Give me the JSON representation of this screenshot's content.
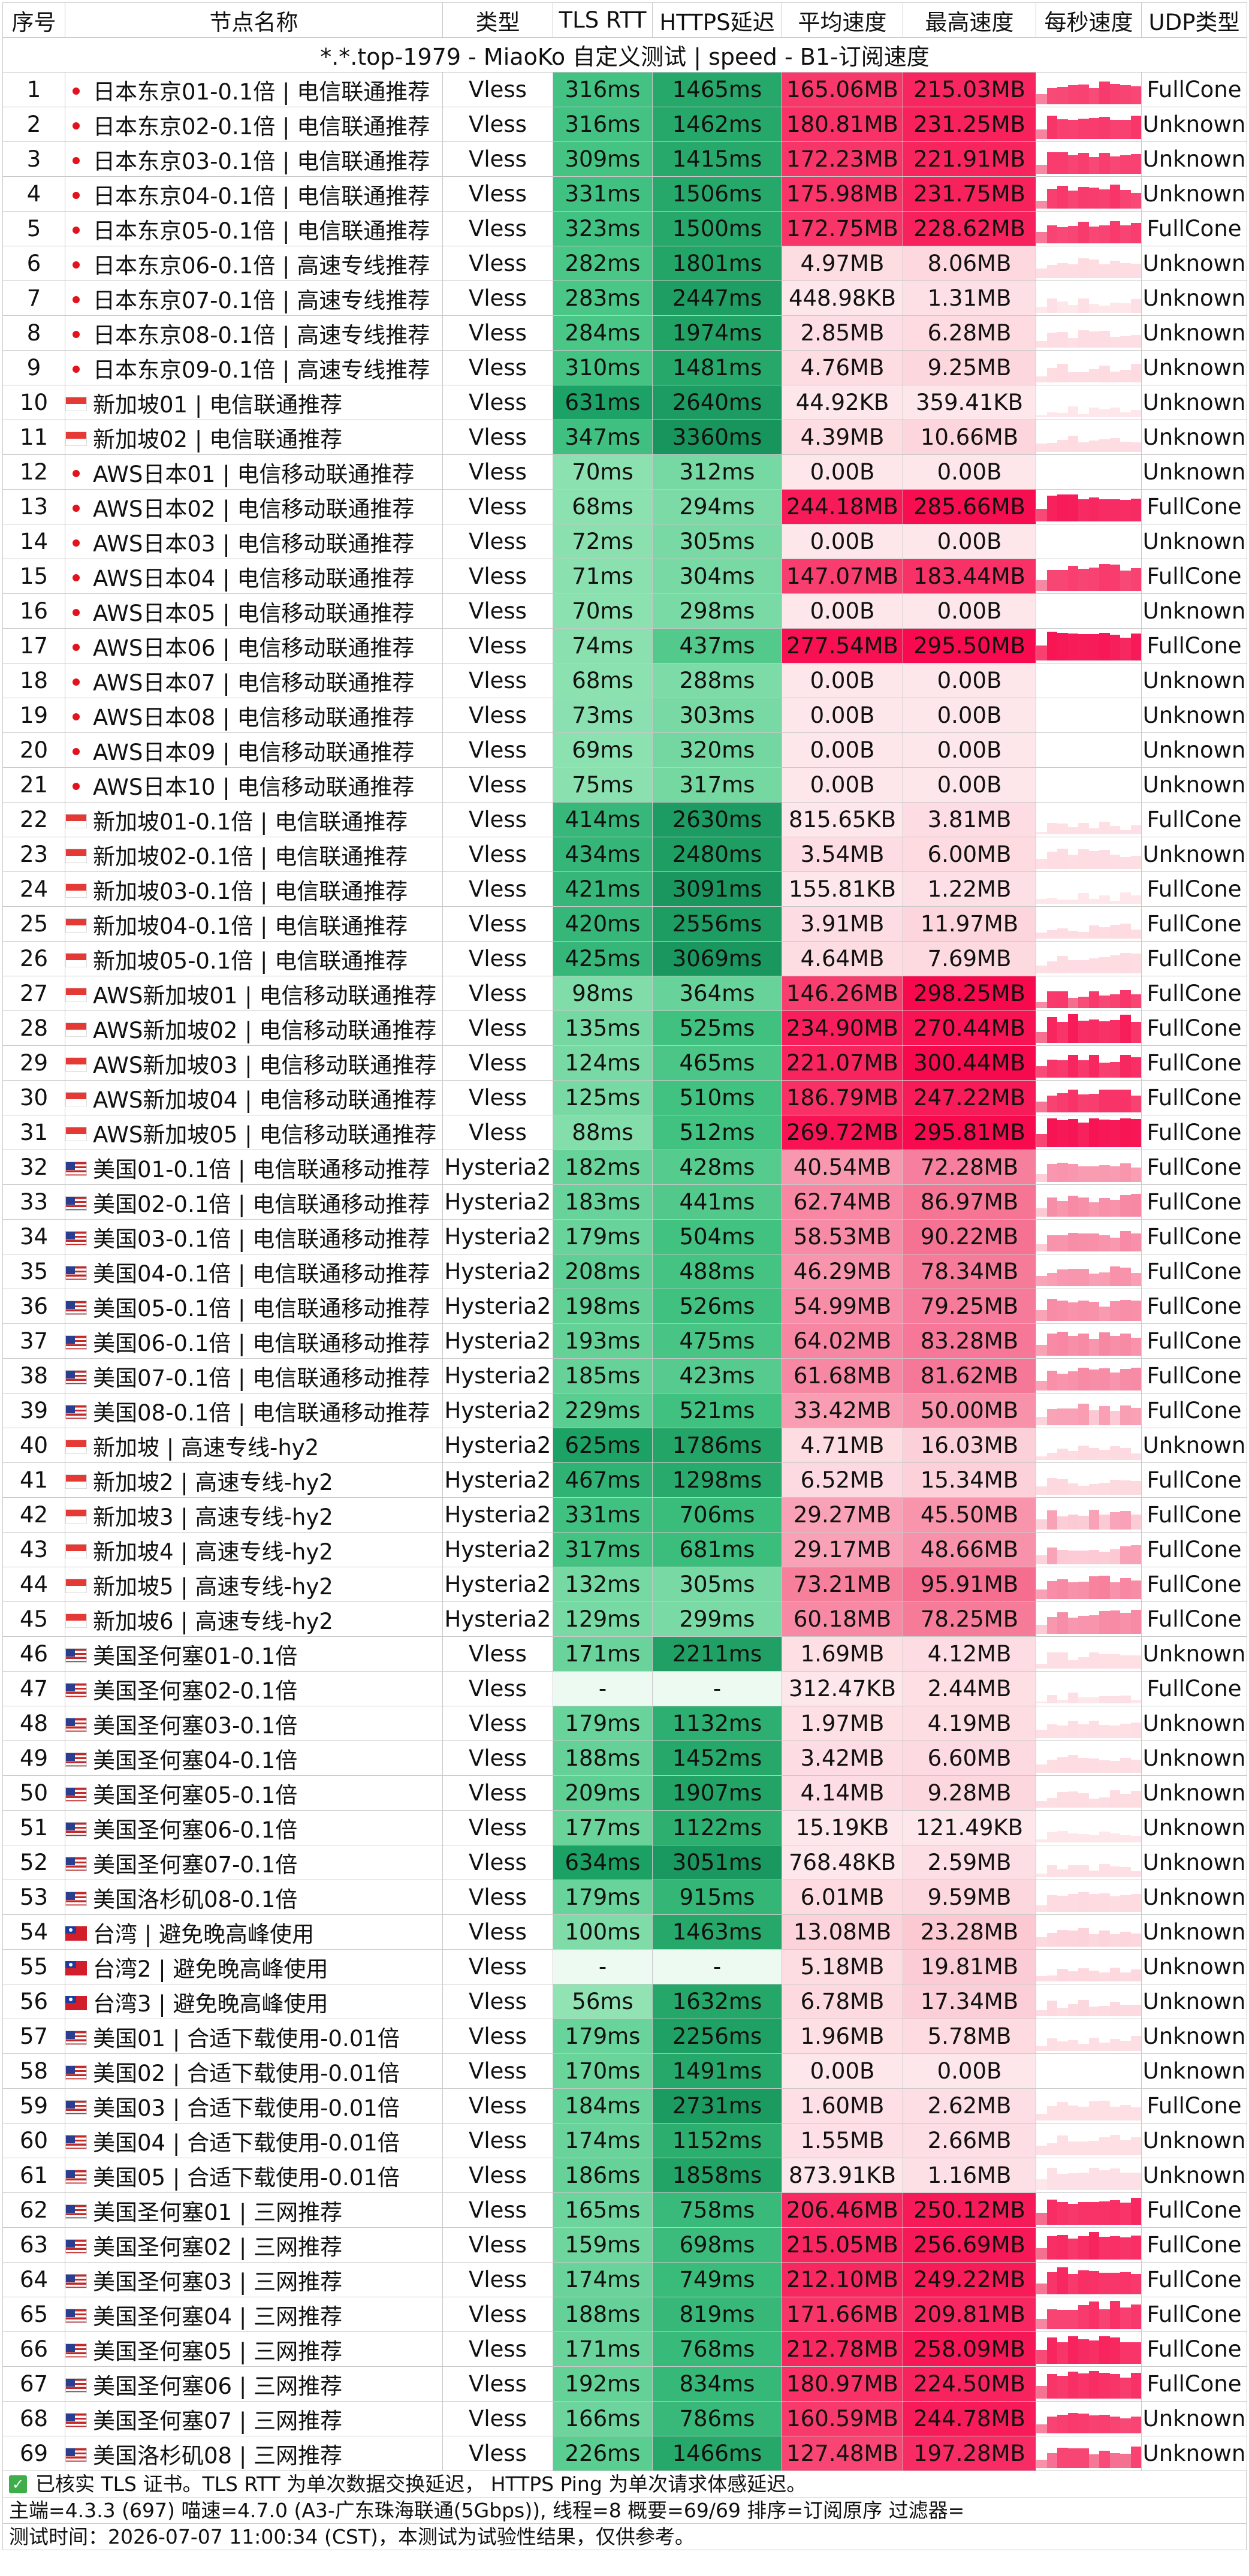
{
  "title": "*.*.top-1979 - MiaoKo 自定义测试 | speed - B1-订阅速度",
  "columns": [
    "序号",
    "节点名称",
    "类型",
    "TLS RTT",
    "HTTPS延迟",
    "平均速度",
    "最高速度",
    "每秒速度",
    "UDP类型"
  ],
  "icons": {
    "jp": "japan-flag-icon",
    "sg": "singapore-flag-icon",
    "us": "usa-flag-icon",
    "tw": "taiwan-flag-icon",
    "check": "check-icon"
  },
  "rows": [
    {
      "idx": "1",
      "flag": "jp",
      "name": "日本东京01-0.1倍 | 电信联通推荐",
      "type": "Vless",
      "tls": "316ms",
      "https": "1465ms",
      "avg": "165.06MB",
      "max": "215.03MB",
      "udp": "FullCone"
    },
    {
      "idx": "2",
      "flag": "jp",
      "name": "日本东京02-0.1倍 | 电信联通推荐",
      "type": "Vless",
      "tls": "316ms",
      "https": "1462ms",
      "avg": "180.81MB",
      "max": "231.25MB",
      "udp": "Unknown"
    },
    {
      "idx": "3",
      "flag": "jp",
      "name": "日本东京03-0.1倍 | 电信联通推荐",
      "type": "Vless",
      "tls": "309ms",
      "https": "1415ms",
      "avg": "172.23MB",
      "max": "221.91MB",
      "udp": "Unknown"
    },
    {
      "idx": "4",
      "flag": "jp",
      "name": "日本东京04-0.1倍 | 电信联通推荐",
      "type": "Vless",
      "tls": "331ms",
      "https": "1506ms",
      "avg": "175.98MB",
      "max": "231.75MB",
      "udp": "Unknown"
    },
    {
      "idx": "5",
      "flag": "jp",
      "name": "日本东京05-0.1倍 | 电信联通推荐",
      "type": "Vless",
      "tls": "323ms",
      "https": "1500ms",
      "avg": "172.75MB",
      "max": "228.62MB",
      "udp": "FullCone"
    },
    {
      "idx": "6",
      "flag": "jp",
      "name": "日本东京06-0.1倍 | 高速专线推荐",
      "type": "Vless",
      "tls": "282ms",
      "https": "1801ms",
      "avg": "4.97MB",
      "max": "8.06MB",
      "udp": "Unknown"
    },
    {
      "idx": "7",
      "flag": "jp",
      "name": "日本东京07-0.1倍 | 高速专线推荐",
      "type": "Vless",
      "tls": "283ms",
      "https": "2447ms",
      "avg": "448.98KB",
      "max": "1.31MB",
      "udp": "Unknown"
    },
    {
      "idx": "8",
      "flag": "jp",
      "name": "日本东京08-0.1倍 | 高速专线推荐",
      "type": "Vless",
      "tls": "284ms",
      "https": "1974ms",
      "avg": "2.85MB",
      "max": "6.28MB",
      "udp": "Unknown"
    },
    {
      "idx": "9",
      "flag": "jp",
      "name": "日本东京09-0.1倍 | 高速专线推荐",
      "type": "Vless",
      "tls": "310ms",
      "https": "1481ms",
      "avg": "4.76MB",
      "max": "9.25MB",
      "udp": "Unknown"
    },
    {
      "idx": "10",
      "flag": "sg",
      "name": "新加坡01 | 电信联通推荐",
      "type": "Vless",
      "tls": "631ms",
      "https": "2640ms",
      "avg": "44.92KB",
      "max": "359.41KB",
      "udp": "Unknown"
    },
    {
      "idx": "11",
      "flag": "sg",
      "name": "新加坡02 | 电信联通推荐",
      "type": "Vless",
      "tls": "347ms",
      "https": "3360ms",
      "avg": "4.39MB",
      "max": "10.66MB",
      "udp": "Unknown"
    },
    {
      "idx": "12",
      "flag": "jp",
      "name": "AWS日本01 | 电信移动联通推荐",
      "type": "Vless",
      "tls": "70ms",
      "https": "312ms",
      "avg": "0.00B",
      "max": "0.00B",
      "udp": "Unknown"
    },
    {
      "idx": "13",
      "flag": "jp",
      "name": "AWS日本02 | 电信移动联通推荐",
      "type": "Vless",
      "tls": "68ms",
      "https": "294ms",
      "avg": "244.18MB",
      "max": "285.66MB",
      "udp": "FullCone"
    },
    {
      "idx": "14",
      "flag": "jp",
      "name": "AWS日本03 | 电信移动联通推荐",
      "type": "Vless",
      "tls": "72ms",
      "https": "305ms",
      "avg": "0.00B",
      "max": "0.00B",
      "udp": "Unknown"
    },
    {
      "idx": "15",
      "flag": "jp",
      "name": "AWS日本04 | 电信移动联通推荐",
      "type": "Vless",
      "tls": "71ms",
      "https": "304ms",
      "avg": "147.07MB",
      "max": "183.44MB",
      "udp": "FullCone"
    },
    {
      "idx": "16",
      "flag": "jp",
      "name": "AWS日本05 | 电信移动联通推荐",
      "type": "Vless",
      "tls": "70ms",
      "https": "298ms",
      "avg": "0.00B",
      "max": "0.00B",
      "udp": "Unknown"
    },
    {
      "idx": "17",
      "flag": "jp",
      "name": "AWS日本06 | 电信移动联通推荐",
      "type": "Vless",
      "tls": "74ms",
      "https": "437ms",
      "avg": "277.54MB",
      "max": "295.50MB",
      "udp": "FullCone"
    },
    {
      "idx": "18",
      "flag": "jp",
      "name": "AWS日本07 | 电信移动联通推荐",
      "type": "Vless",
      "tls": "68ms",
      "https": "288ms",
      "avg": "0.00B",
      "max": "0.00B",
      "udp": "Unknown"
    },
    {
      "idx": "19",
      "flag": "jp",
      "name": "AWS日本08 | 电信移动联通推荐",
      "type": "Vless",
      "tls": "73ms",
      "https": "303ms",
      "avg": "0.00B",
      "max": "0.00B",
      "udp": "Unknown"
    },
    {
      "idx": "20",
      "flag": "jp",
      "name": "AWS日本09 | 电信移动联通推荐",
      "type": "Vless",
      "tls": "69ms",
      "https": "320ms",
      "avg": "0.00B",
      "max": "0.00B",
      "udp": "Unknown"
    },
    {
      "idx": "21",
      "flag": "jp",
      "name": "AWS日本10 | 电信移动联通推荐",
      "type": "Vless",
      "tls": "75ms",
      "https": "317ms",
      "avg": "0.00B",
      "max": "0.00B",
      "udp": "Unknown"
    },
    {
      "idx": "22",
      "flag": "sg",
      "name": "新加坡01-0.1倍 | 电信联通推荐",
      "type": "Vless",
      "tls": "414ms",
      "https": "2630ms",
      "avg": "815.65KB",
      "max": "3.81MB",
      "udp": "FullCone"
    },
    {
      "idx": "23",
      "flag": "sg",
      "name": "新加坡02-0.1倍 | 电信联通推荐",
      "type": "Vless",
      "tls": "434ms",
      "https": "2480ms",
      "avg": "3.54MB",
      "max": "6.00MB",
      "udp": "Unknown"
    },
    {
      "idx": "24",
      "flag": "sg",
      "name": "新加坡03-0.1倍 | 电信联通推荐",
      "type": "Vless",
      "tls": "421ms",
      "https": "3091ms",
      "avg": "155.81KB",
      "max": "1.22MB",
      "udp": "FullCone"
    },
    {
      "idx": "25",
      "flag": "sg",
      "name": "新加坡04-0.1倍 | 电信联通推荐",
      "type": "Vless",
      "tls": "420ms",
      "https": "2556ms",
      "avg": "3.91MB",
      "max": "11.97MB",
      "udp": "FullCone"
    },
    {
      "idx": "26",
      "flag": "sg",
      "name": "新加坡05-0.1倍 | 电信联通推荐",
      "type": "Vless",
      "tls": "425ms",
      "https": "3069ms",
      "avg": "4.64MB",
      "max": "7.69MB",
      "udp": "FullCone"
    },
    {
      "idx": "27",
      "flag": "sg",
      "name": "AWS新加坡01 | 电信移动联通推荐",
      "type": "Vless",
      "tls": "98ms",
      "https": "364ms",
      "avg": "146.26MB",
      "max": "298.25MB",
      "udp": "FullCone"
    },
    {
      "idx": "28",
      "flag": "sg",
      "name": "AWS新加坡02 | 电信移动联通推荐",
      "type": "Vless",
      "tls": "135ms",
      "https": "525ms",
      "avg": "234.90MB",
      "max": "270.44MB",
      "udp": "FullCone"
    },
    {
      "idx": "29",
      "flag": "sg",
      "name": "AWS新加坡03 | 电信移动联通推荐",
      "type": "Vless",
      "tls": "124ms",
      "https": "465ms",
      "avg": "221.07MB",
      "max": "300.44MB",
      "udp": "FullCone"
    },
    {
      "idx": "30",
      "flag": "sg",
      "name": "AWS新加坡04 | 电信移动联通推荐",
      "type": "Vless",
      "tls": "125ms",
      "https": "510ms",
      "avg": "186.79MB",
      "max": "247.22MB",
      "udp": "FullCone"
    },
    {
      "idx": "31",
      "flag": "sg",
      "name": "AWS新加坡05 | 电信移动联通推荐",
      "type": "Vless",
      "tls": "88ms",
      "https": "512ms",
      "avg": "269.72MB",
      "max": "295.81MB",
      "udp": "FullCone"
    },
    {
      "idx": "32",
      "flag": "us",
      "name": "美国01-0.1倍 | 电信联通移动推荐",
      "type": "Hysteria2",
      "tls": "182ms",
      "https": "428ms",
      "avg": "40.54MB",
      "max": "72.28MB",
      "udp": "FullCone"
    },
    {
      "idx": "33",
      "flag": "us",
      "name": "美国02-0.1倍 | 电信联通移动推荐",
      "type": "Hysteria2",
      "tls": "183ms",
      "https": "441ms",
      "avg": "62.74MB",
      "max": "86.97MB",
      "udp": "FullCone"
    },
    {
      "idx": "34",
      "flag": "us",
      "name": "美国03-0.1倍 | 电信联通移动推荐",
      "type": "Hysteria2",
      "tls": "179ms",
      "https": "504ms",
      "avg": "58.53MB",
      "max": "90.22MB",
      "udp": "FullCone"
    },
    {
      "idx": "35",
      "flag": "us",
      "name": "美国04-0.1倍 | 电信联通移动推荐",
      "type": "Hysteria2",
      "tls": "208ms",
      "https": "488ms",
      "avg": "46.29MB",
      "max": "78.34MB",
      "udp": "FullCone"
    },
    {
      "idx": "36",
      "flag": "us",
      "name": "美国05-0.1倍 | 电信联通移动推荐",
      "type": "Hysteria2",
      "tls": "198ms",
      "https": "526ms",
      "avg": "54.99MB",
      "max": "79.25MB",
      "udp": "FullCone"
    },
    {
      "idx": "37",
      "flag": "us",
      "name": "美国06-0.1倍 | 电信联通移动推荐",
      "type": "Hysteria2",
      "tls": "193ms",
      "https": "475ms",
      "avg": "64.02MB",
      "max": "83.28MB",
      "udp": "FullCone"
    },
    {
      "idx": "38",
      "flag": "us",
      "name": "美国07-0.1倍 | 电信联通移动推荐",
      "type": "Hysteria2",
      "tls": "185ms",
      "https": "423ms",
      "avg": "61.68MB",
      "max": "81.62MB",
      "udp": "FullCone"
    },
    {
      "idx": "39",
      "flag": "us",
      "name": "美国08-0.1倍 | 电信联通移动推荐",
      "type": "Hysteria2",
      "tls": "229ms",
      "https": "521ms",
      "avg": "33.42MB",
      "max": "50.00MB",
      "udp": "FullCone"
    },
    {
      "idx": "40",
      "flag": "sg",
      "name": "新加坡 | 高速专线-hy2",
      "type": "Hysteria2",
      "tls": "625ms",
      "https": "1786ms",
      "avg": "4.71MB",
      "max": "16.03MB",
      "udp": "Unknown"
    },
    {
      "idx": "41",
      "flag": "sg",
      "name": "新加坡2 | 高速专线-hy2",
      "type": "Hysteria2",
      "tls": "467ms",
      "https": "1298ms",
      "avg": "6.52MB",
      "max": "15.34MB",
      "udp": "FullCone"
    },
    {
      "idx": "42",
      "flag": "sg",
      "name": "新加坡3 | 高速专线-hy2",
      "type": "Hysteria2",
      "tls": "331ms",
      "https": "706ms",
      "avg": "29.27MB",
      "max": "45.50MB",
      "udp": "FullCone"
    },
    {
      "idx": "43",
      "flag": "sg",
      "name": "新加坡4 | 高速专线-hy2",
      "type": "Hysteria2",
      "tls": "317ms",
      "https": "681ms",
      "avg": "29.17MB",
      "max": "48.66MB",
      "udp": "FullCone"
    },
    {
      "idx": "44",
      "flag": "sg",
      "name": "新加坡5 | 高速专线-hy2",
      "type": "Hysteria2",
      "tls": "132ms",
      "https": "305ms",
      "avg": "73.21MB",
      "max": "95.91MB",
      "udp": "FullCone"
    },
    {
      "idx": "45",
      "flag": "sg",
      "name": "新加坡6 | 高速专线-hy2",
      "type": "Hysteria2",
      "tls": "129ms",
      "https": "299ms",
      "avg": "60.18MB",
      "max": "78.25MB",
      "udp": "FullCone"
    },
    {
      "idx": "46",
      "flag": "us",
      "name": "美国圣何塞01-0.1倍",
      "type": "Vless",
      "tls": "171ms",
      "https": "2211ms",
      "avg": "1.69MB",
      "max": "4.12MB",
      "udp": "Unknown"
    },
    {
      "idx": "47",
      "flag": "us",
      "name": "美国圣何塞02-0.1倍",
      "type": "Vless",
      "tls": "-",
      "https": "-",
      "avg": "312.47KB",
      "max": "2.44MB",
      "udp": "FullCone"
    },
    {
      "idx": "48",
      "flag": "us",
      "name": "美国圣何塞03-0.1倍",
      "type": "Vless",
      "tls": "179ms",
      "https": "1132ms",
      "avg": "1.97MB",
      "max": "4.19MB",
      "udp": "Unknown"
    },
    {
      "idx": "49",
      "flag": "us",
      "name": "美国圣何塞04-0.1倍",
      "type": "Vless",
      "tls": "188ms",
      "https": "1452ms",
      "avg": "3.42MB",
      "max": "6.60MB",
      "udp": "Unknown"
    },
    {
      "idx": "50",
      "flag": "us",
      "name": "美国圣何塞05-0.1倍",
      "type": "Vless",
      "tls": "209ms",
      "https": "1907ms",
      "avg": "4.14MB",
      "max": "9.28MB",
      "udp": "Unknown"
    },
    {
      "idx": "51",
      "flag": "us",
      "name": "美国圣何塞06-0.1倍",
      "type": "Vless",
      "tls": "177ms",
      "https": "1122ms",
      "avg": "15.19KB",
      "max": "121.49KB",
      "udp": "Unknown"
    },
    {
      "idx": "52",
      "flag": "us",
      "name": "美国圣何塞07-0.1倍",
      "type": "Vless",
      "tls": "634ms",
      "https": "3051ms",
      "avg": "768.48KB",
      "max": "2.59MB",
      "udp": "Unknown"
    },
    {
      "idx": "53",
      "flag": "us",
      "name": "美国洛杉矶08-0.1倍",
      "type": "Vless",
      "tls": "179ms",
      "https": "915ms",
      "avg": "6.01MB",
      "max": "9.59MB",
      "udp": "Unknown"
    },
    {
      "idx": "54",
      "flag": "tw",
      "name": "台湾 | 避免晚高峰使用",
      "type": "Vless",
      "tls": "100ms",
      "https": "1463ms",
      "avg": "13.08MB",
      "max": "23.28MB",
      "udp": "Unknown"
    },
    {
      "idx": "55",
      "flag": "tw",
      "name": "台湾2 | 避免晚高峰使用",
      "type": "Vless",
      "tls": "-",
      "https": "-",
      "avg": "5.18MB",
      "max": "19.81MB",
      "udp": "Unknown"
    },
    {
      "idx": "56",
      "flag": "tw",
      "name": "台湾3 | 避免晚高峰使用",
      "type": "Vless",
      "tls": "56ms",
      "https": "1632ms",
      "avg": "6.78MB",
      "max": "17.34MB",
      "udp": "Unknown"
    },
    {
      "idx": "57",
      "flag": "us",
      "name": "美国01 | 合适下载使用-0.01倍",
      "type": "Vless",
      "tls": "179ms",
      "https": "2256ms",
      "avg": "1.96MB",
      "max": "5.78MB",
      "udp": "Unknown"
    },
    {
      "idx": "58",
      "flag": "us",
      "name": "美国02 | 合适下载使用-0.01倍",
      "type": "Vless",
      "tls": "170ms",
      "https": "1491ms",
      "avg": "0.00B",
      "max": "0.00B",
      "udp": "Unknown"
    },
    {
      "idx": "59",
      "flag": "us",
      "name": "美国03 | 合适下载使用-0.01倍",
      "type": "Vless",
      "tls": "184ms",
      "https": "2731ms",
      "avg": "1.60MB",
      "max": "2.62MB",
      "udp": "FullCone"
    },
    {
      "idx": "60",
      "flag": "us",
      "name": "美国04 | 合适下载使用-0.01倍",
      "type": "Vless",
      "tls": "174ms",
      "https": "1152ms",
      "avg": "1.55MB",
      "max": "2.66MB",
      "udp": "Unknown"
    },
    {
      "idx": "61",
      "flag": "us",
      "name": "美国05 | 合适下载使用-0.01倍",
      "type": "Vless",
      "tls": "186ms",
      "https": "1858ms",
      "avg": "873.91KB",
      "max": "1.16MB",
      "udp": "Unknown"
    },
    {
      "idx": "62",
      "flag": "us",
      "name": "美国圣何塞01 | 三网推荐",
      "type": "Vless",
      "tls": "165ms",
      "https": "758ms",
      "avg": "206.46MB",
      "max": "250.12MB",
      "udp": "FullCone"
    },
    {
      "idx": "63",
      "flag": "us",
      "name": "美国圣何塞02 | 三网推荐",
      "type": "Vless",
      "tls": "159ms",
      "https": "698ms",
      "avg": "215.05MB",
      "max": "256.69MB",
      "udp": "FullCone"
    },
    {
      "idx": "64",
      "flag": "us",
      "name": "美国圣何塞03 | 三网推荐",
      "type": "Vless",
      "tls": "174ms",
      "https": "749ms",
      "avg": "212.10MB",
      "max": "249.22MB",
      "udp": "FullCone"
    },
    {
      "idx": "65",
      "flag": "us",
      "name": "美国圣何塞04 | 三网推荐",
      "type": "Vless",
      "tls": "188ms",
      "https": "819ms",
      "avg": "171.66MB",
      "max": "209.81MB",
      "udp": "FullCone"
    },
    {
      "idx": "66",
      "flag": "us",
      "name": "美国圣何塞05 | 三网推荐",
      "type": "Vless",
      "tls": "171ms",
      "https": "768ms",
      "avg": "212.78MB",
      "max": "258.09MB",
      "udp": "FullCone"
    },
    {
      "idx": "67",
      "flag": "us",
      "name": "美国圣何塞06 | 三网推荐",
      "type": "Vless",
      "tls": "192ms",
      "https": "834ms",
      "avg": "180.97MB",
      "max": "224.50MB",
      "udp": "FullCone"
    },
    {
      "idx": "68",
      "flag": "us",
      "name": "美国圣何塞07 | 三网推荐",
      "type": "Vless",
      "tls": "166ms",
      "https": "786ms",
      "avg": "160.59MB",
      "max": "244.78MB",
      "udp": "Unknown"
    },
    {
      "idx": "69",
      "flag": "us",
      "name": "美国洛杉矶08 | 三网推荐",
      "type": "Vless",
      "tls": "226ms",
      "https": "1466ms",
      "avg": "127.48MB",
      "max": "197.28MB",
      "udp": "Unknown"
    }
  ],
  "footer": {
    "line1": "已核实 TLS 证书。TLS RTT 为单次数据交换延迟， HTTPS Ping 为单次请求体感延迟。",
    "line2": "主端=4.3.3 (697) 喵速=4.7.0 (A3-广东珠海联通(5Gbps)), 线程=8 概要=69/69 排序=订阅原序 过滤器=",
    "line3": "测试时间：2026-07-07 11:00:34 (CST)，本测试为试验性结果，仅供参考。"
  }
}
